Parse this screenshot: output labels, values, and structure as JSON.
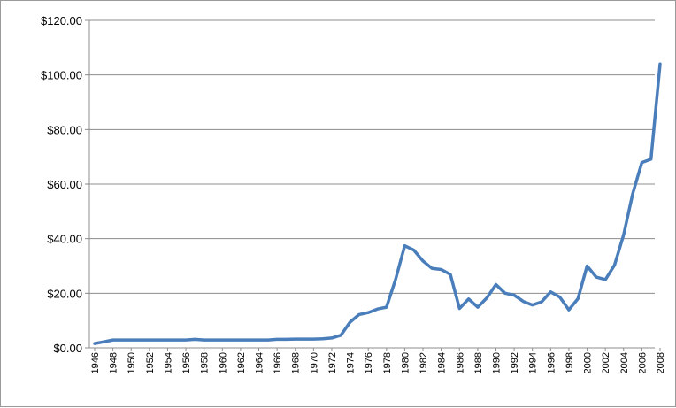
{
  "chart_data": {
    "type": "line",
    "title": "",
    "xlabel": "",
    "ylabel": "",
    "ylim": [
      0,
      120
    ],
    "y_ticks": [
      0,
      20,
      40,
      60,
      80,
      100,
      120
    ],
    "y_tick_labels": [
      "$0.00",
      "$20.00",
      "$40.00",
      "$60.00",
      "$80.00",
      "$100.00",
      "$120.00"
    ],
    "x_tick_labels": [
      "1946",
      "1948",
      "1950",
      "1952",
      "1954",
      "1956",
      "1958",
      "1960",
      "1962",
      "1964",
      "1966",
      "1968",
      "1970",
      "1972",
      "1974",
      "1976",
      "1978",
      "1980",
      "1982",
      "1984",
      "1986",
      "1988",
      "1990",
      "1992",
      "1994",
      "1996",
      "1998",
      "2000",
      "2002",
      "2004",
      "2006",
      "2008"
    ],
    "grid": true,
    "legend": "none",
    "line_color": "#4a7ebb",
    "x": [
      1946,
      1947,
      1948,
      1949,
      1950,
      1951,
      1952,
      1953,
      1954,
      1955,
      1956,
      1957,
      1958,
      1959,
      1960,
      1961,
      1962,
      1963,
      1964,
      1965,
      1966,
      1967,
      1968,
      1969,
      1970,
      1971,
      1972,
      1973,
      1974,
      1975,
      1976,
      1977,
      1978,
      1979,
      1980,
      1981,
      1982,
      1983,
      1984,
      1985,
      1986,
      1987,
      1988,
      1989,
      1990,
      1991,
      1992,
      1993,
      1994,
      1995,
      1996,
      1997,
      1998,
      1999,
      2000,
      2001,
      2002,
      2003,
      2004,
      2005,
      2006,
      2007,
      2008
    ],
    "series": [
      {
        "values": [
          1.6,
          2.2,
          2.9,
          2.9,
          2.9,
          2.9,
          2.9,
          2.9,
          2.9,
          2.9,
          2.9,
          3.1,
          2.9,
          2.9,
          2.9,
          2.9,
          2.9,
          2.9,
          2.9,
          2.9,
          3.1,
          3.1,
          3.2,
          3.2,
          3.2,
          3.3,
          3.6,
          4.6,
          9.4,
          12.2,
          12.9,
          14.2,
          14.9,
          25.1,
          37.4,
          35.8,
          31.8,
          29.1,
          28.7,
          26.9,
          14.4,
          17.9,
          14.9,
          18.3,
          23.2,
          20.0,
          19.3,
          17.0,
          15.7,
          16.8,
          20.5,
          18.6,
          13.9,
          18.0,
          30.0,
          25.9,
          25.0,
          30.3,
          41.4,
          56.5,
          67.9,
          69.1,
          104.0
        ]
      }
    ]
  }
}
